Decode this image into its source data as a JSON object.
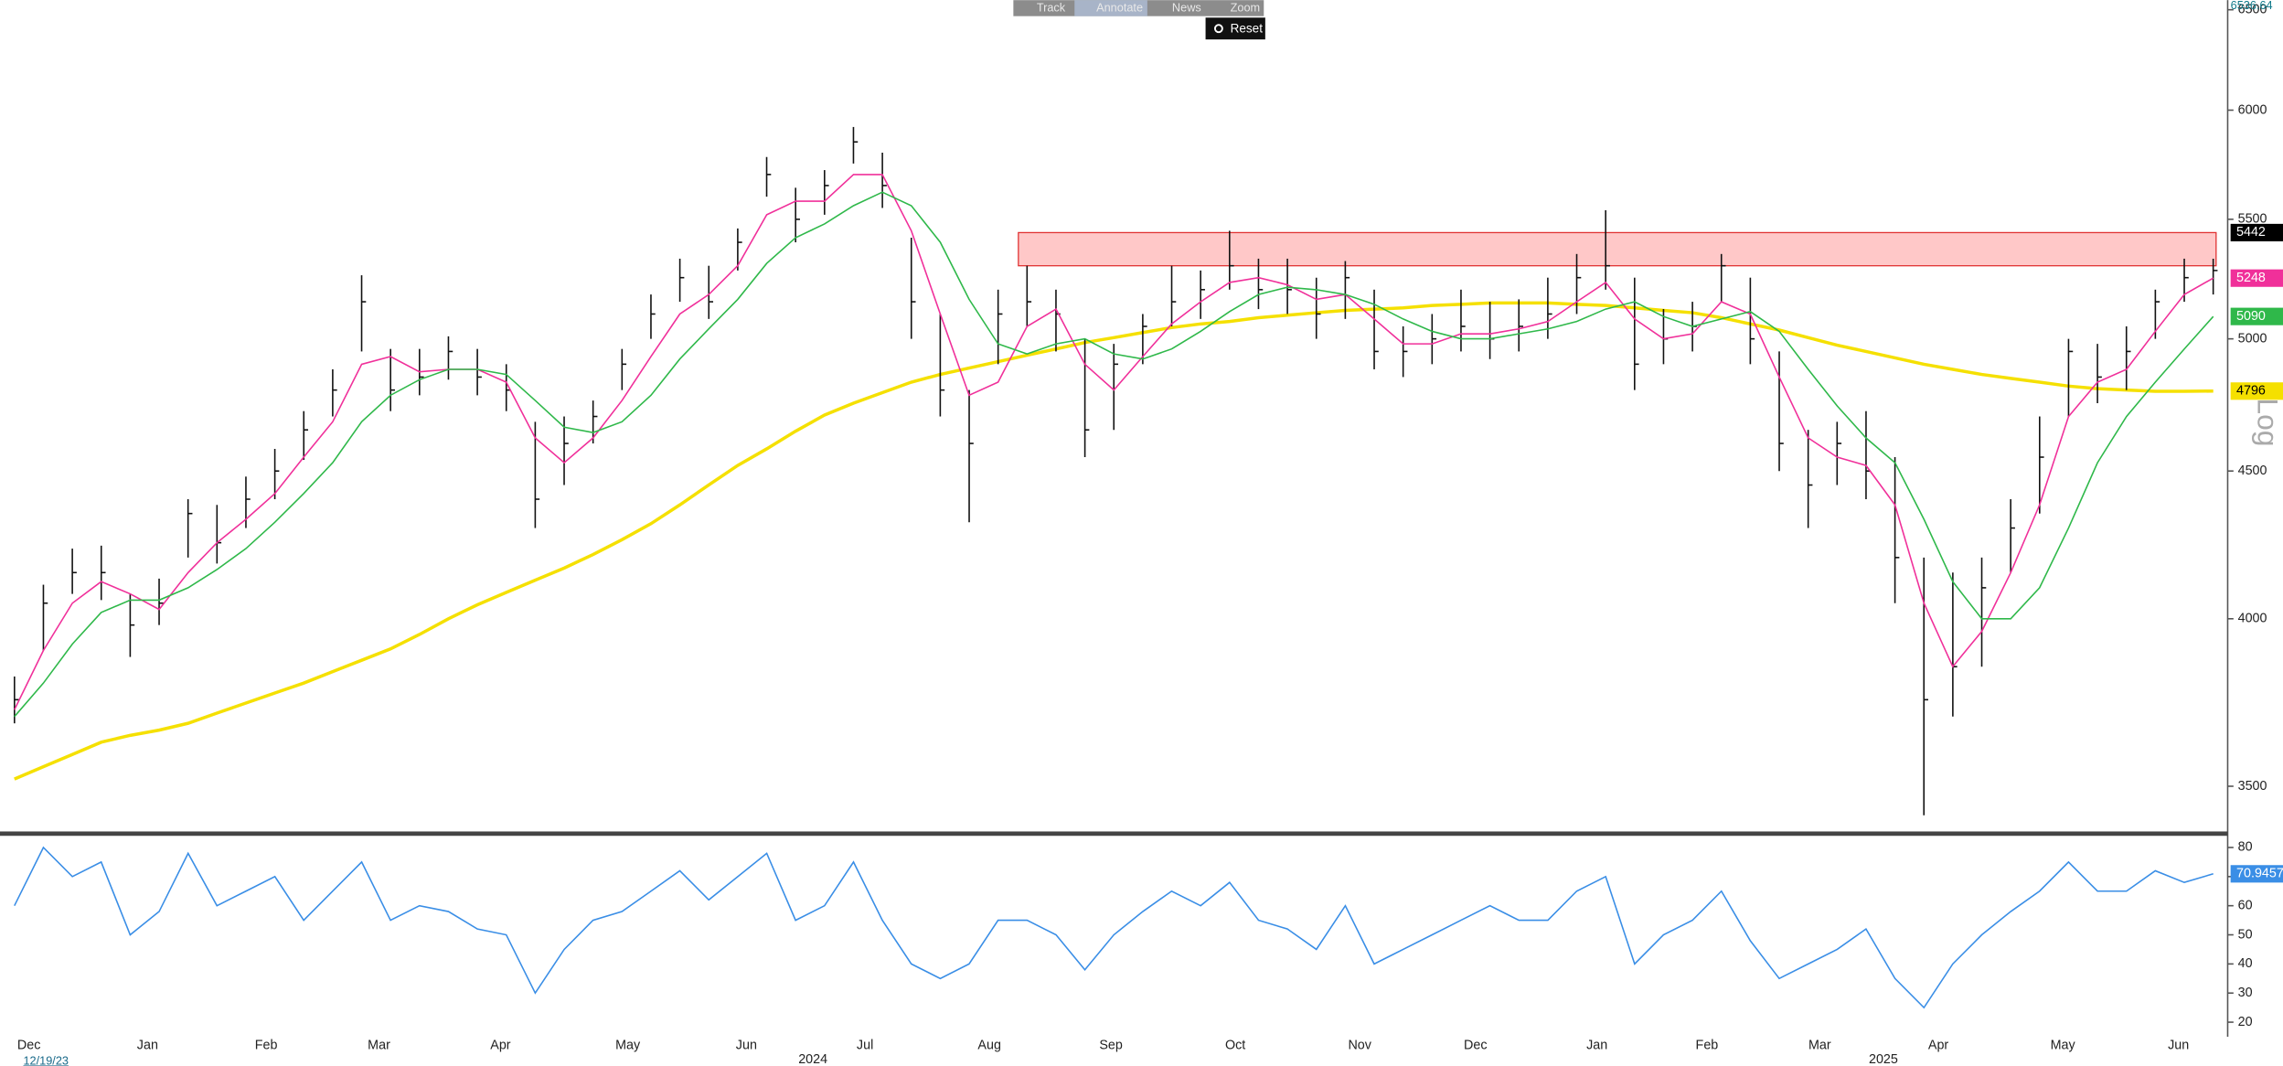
{
  "toolbar": [
    "Track",
    "Annotate",
    "News",
    "Zoom"
  ],
  "reset": "Reset",
  "chart_data": [
    {
      "type": "ohlc",
      "scale": "log",
      "scale_label": "Log",
      "y_readout": 6536.64,
      "ylim": [
        3380,
        6550
      ],
      "yticks": [
        3500,
        4000,
        4500,
        5000,
        5500,
        6000,
        6500
      ],
      "xlim": [
        -0.5,
        76.5
      ],
      "xticks": [
        {
          "value": 0.5,
          "label": "Dec"
        },
        {
          "value": 4.6,
          "label": "Jan"
        },
        {
          "value": 8.7,
          "label": "Feb"
        },
        {
          "value": 12.6,
          "label": "Mar"
        },
        {
          "value": 16.8,
          "label": "Apr"
        },
        {
          "value": 21.2,
          "label": "May"
        },
        {
          "value": 25.3,
          "label": "Jun"
        },
        {
          "value": 29.4,
          "label": "Jul"
        },
        {
          "value": 33.7,
          "label": "Aug"
        },
        {
          "value": 37.9,
          "label": "Sep"
        },
        {
          "value": 42.2,
          "label": "Oct"
        },
        {
          "value": 46.5,
          "label": "Nov"
        },
        {
          "value": 50.5,
          "label": "Dec"
        },
        {
          "value": 54.7,
          "label": "Jan"
        },
        {
          "value": 58.5,
          "label": "Feb"
        },
        {
          "value": 62.4,
          "label": "Mar"
        },
        {
          "value": 66.5,
          "label": "Apr"
        },
        {
          "value": 70.8,
          "label": "May"
        },
        {
          "value": 74.8,
          "label": "Jun"
        }
      ],
      "year_ticks": [
        {
          "value": 27.6,
          "label": "2024"
        },
        {
          "value": 64.6,
          "label": "2025"
        }
      ],
      "start_label": "12/19/23",
      "bar_color": "#111111",
      "high": [
        3820,
        4110,
        4230,
        4240,
        4080,
        4130,
        4400,
        4380,
        4480,
        4580,
        4720,
        4880,
        5260,
        4960,
        4960,
        5010,
        4960,
        4900,
        4680,
        4700,
        4760,
        4960,
        5180,
        5330,
        5300,
        5460,
        5780,
        5640,
        5720,
        5920,
        5800,
        5420,
        5100,
        4800,
        5200,
        5300,
        5200,
        5000,
        4980,
        5100,
        5300,
        5280,
        5450,
        5330,
        5330,
        5250,
        5320,
        5200,
        5050,
        5100,
        5200,
        5150,
        5160,
        5250,
        5350,
        5540,
        5250,
        5120,
        5150,
        5350,
        5250,
        4950,
        4650,
        4680,
        4720,
        4550,
        4200,
        4150,
        4200,
        4400,
        4700,
        5000,
        4980,
        5050,
        5200,
        5330,
        5330
      ],
      "low": [
        3680,
        3900,
        4080,
        4060,
        3880,
        3980,
        4200,
        4180,
        4300,
        4400,
        4540,
        4700,
        4950,
        4720,
        4780,
        4840,
        4780,
        4720,
        4300,
        4450,
        4600,
        4800,
        5000,
        5150,
        5080,
        5280,
        5600,
        5400,
        5520,
        5750,
        5550,
        5000,
        4700,
        4320,
        4900,
        5050,
        4950,
        4550,
        4650,
        4900,
        5050,
        5080,
        5200,
        5120,
        5100,
        5000,
        5080,
        4880,
        4850,
        4900,
        4950,
        4920,
        4950,
        5000,
        5100,
        5200,
        4800,
        4900,
        4950,
        5150,
        4900,
        4500,
        4300,
        4450,
        4400,
        4050,
        3420,
        3700,
        3850,
        4150,
        4350,
        4700,
        4750,
        4800,
        5000,
        5150,
        5180
      ],
      "close": [
        3750,
        4050,
        4150,
        4150,
        3980,
        4050,
        4350,
        4250,
        4400,
        4500,
        4650,
        4800,
        5150,
        4800,
        4850,
        4950,
        4850,
        4800,
        4400,
        4600,
        4700,
        4900,
        5100,
        5250,
        5150,
        5400,
        5700,
        5500,
        5650,
        5850,
        5650,
        5150,
        4800,
        4600,
        5100,
        5150,
        5100,
        4650,
        4900,
        5050,
        5150,
        5200,
        5300,
        5200,
        5200,
        5100,
        5250,
        4950,
        4950,
        5000,
        5050,
        5000,
        5050,
        5100,
        5250,
        5300,
        4900,
        5000,
        5050,
        5300,
        5000,
        4600,
        4450,
        4600,
        4500,
        4200,
        3750,
        3850,
        4100,
        4300,
        4550,
        4950,
        4850,
        4950,
        5150,
        5250,
        5280
      ],
      "band": {
        "high": 5442,
        "low": 5300,
        "x": [
          34.7,
          76.1
        ],
        "color": "#ffc8c8",
        "edge": "#e03030",
        "label_color": "#000000"
      },
      "series": [
        {
          "color": "#f0309a",
          "label_text_color": "#ffffff",
          "values": [
            3720,
            3900,
            4050,
            4120,
            4080,
            4030,
            4150,
            4250,
            4330,
            4420,
            4550,
            4680,
            4900,
            4930,
            4870,
            4880,
            4880,
            4830,
            4620,
            4530,
            4620,
            4760,
            4930,
            5100,
            5180,
            5300,
            5520,
            5580,
            5580,
            5700,
            5700,
            5450,
            5100,
            4780,
            4830,
            5050,
            5120,
            4900,
            4800,
            4930,
            5060,
            5150,
            5230,
            5250,
            5220,
            5160,
            5180,
            5080,
            4980,
            4980,
            5020,
            5020,
            5040,
            5070,
            5150,
            5230,
            5080,
            5000,
            5020,
            5150,
            5100,
            4850,
            4620,
            4550,
            4520,
            4380,
            4050,
            3850,
            3960,
            4150,
            4380,
            4700,
            4830,
            4880,
            5030,
            5180,
            5248
          ]
        },
        {
          "color": "#2fb84a",
          "label_text_color": "#ffffff",
          "values": [
            3700,
            3800,
            3920,
            4020,
            4060,
            4060,
            4100,
            4160,
            4230,
            4320,
            4420,
            4530,
            4680,
            4780,
            4840,
            4880,
            4880,
            4860,
            4760,
            4660,
            4640,
            4680,
            4780,
            4920,
            5040,
            5160,
            5310,
            5420,
            5480,
            5560,
            5620,
            5560,
            5400,
            5160,
            4980,
            4940,
            4980,
            5000,
            4940,
            4920,
            4960,
            5030,
            5110,
            5180,
            5210,
            5200,
            5180,
            5140,
            5080,
            5030,
            5000,
            5000,
            5020,
            5040,
            5070,
            5120,
            5150,
            5090,
            5050,
            5080,
            5110,
            5030,
            4880,
            4740,
            4620,
            4530,
            4330,
            4120,
            4000,
            4000,
            4100,
            4300,
            4530,
            4700,
            4830,
            4960,
            5090
          ]
        },
        {
          "color": "#f5e000",
          "label_text_color": "#000000",
          "values": [
            3520,
            3555,
            3590,
            3625,
            3645,
            3660,
            3680,
            3710,
            3740,
            3770,
            3800,
            3835,
            3870,
            3905,
            3950,
            4000,
            4045,
            4085,
            4125,
            4165,
            4210,
            4260,
            4315,
            4380,
            4450,
            4520,
            4580,
            4645,
            4705,
            4750,
            4790,
            4830,
            4860,
            4885,
            4910,
            4935,
            4960,
            4985,
            5005,
            5025,
            5045,
            5060,
            5070,
            5085,
            5095,
            5105,
            5115,
            5120,
            5125,
            5135,
            5140,
            5145,
            5145,
            5145,
            5140,
            5135,
            5125,
            5115,
            5105,
            5085,
            5060,
            5035,
            5005,
            4975,
            4950,
            4925,
            4900,
            4880,
            4860,
            4845,
            4830,
            4815,
            4805,
            4800,
            4795,
            4795,
            4796
          ]
        }
      ]
    },
    {
      "type": "line",
      "ylim": [
        16,
        84
      ],
      "yticks": [
        20,
        30,
        40,
        50,
        60,
        70,
        80
      ],
      "xlim": [
        -0.5,
        76.5
      ],
      "series": [
        {
          "color": "#3a8ee6",
          "label_text_color": "#ffffff",
          "values": [
            60,
            80,
            70,
            75,
            50,
            58,
            78,
            60,
            65,
            70,
            55,
            65,
            75,
            55,
            60,
            58,
            52,
            50,
            30,
            45,
            55,
            58,
            65,
            72,
            62,
            70,
            78,
            55,
            60,
            75,
            55,
            40,
            35,
            40,
            55,
            55,
            50,
            38,
            50,
            58,
            65,
            60,
            68,
            55,
            52,
            45,
            60,
            40,
            45,
            50,
            55,
            60,
            55,
            55,
            65,
            70,
            40,
            50,
            55,
            65,
            48,
            35,
            40,
            45,
            52,
            35,
            25,
            40,
            50,
            58,
            65,
            75,
            65,
            65,
            72,
            68,
            70.9457
          ]
        }
      ]
    }
  ]
}
